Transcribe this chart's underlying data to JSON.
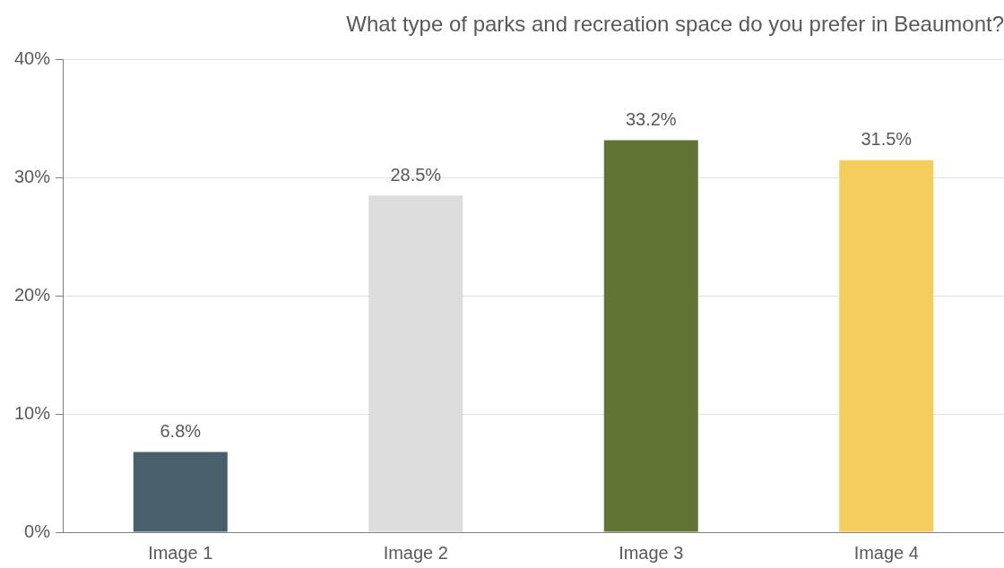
{
  "chart_data": {
    "type": "bar",
    "title": "What type of parks and recreation space do you prefer in Beaumont?",
    "categories": [
      "Image 1",
      "Image 2",
      "Image 3",
      "Image 4"
    ],
    "values": [
      6.8,
      28.5,
      33.2,
      31.5
    ],
    "colors": [
      "#4a5f6c",
      "#dcdcdc",
      "#627433",
      "#f4cd5c"
    ],
    "value_labels": [
      "6.8%",
      "28.5%",
      "33.2%",
      "31.5%"
    ],
    "ylim": [
      0,
      40
    ],
    "yticks": [
      {
        "value": 0,
        "label": "0%"
      },
      {
        "value": 10,
        "label": "10%"
      },
      {
        "value": 20,
        "label": "20%"
      },
      {
        "value": 30,
        "label": "30%"
      },
      {
        "value": 40,
        "label": "40%"
      }
    ],
    "grid": "y",
    "legend": false
  }
}
